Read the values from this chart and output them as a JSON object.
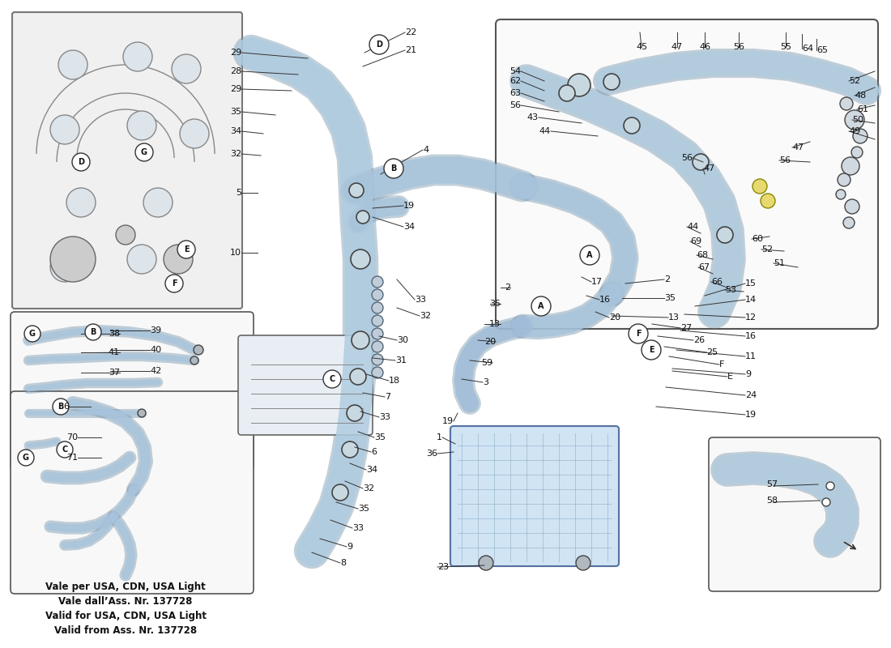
{
  "background_color": "#ffffff",
  "fig_width": 11.0,
  "fig_height": 8.0,
  "dpi": 100,
  "watermark_lines": [
    "Vale per USA, CDN, USA Light",
    "Vale dall’Ass. Nr. 137728",
    "Valid for USA, CDN, USA Light",
    "Valid from Ass. Nr. 137728"
  ],
  "tube_color": "#a8c8e0",
  "tube_outline": "#7090a8",
  "label_fs": 8,
  "circ_label_fs": 7
}
